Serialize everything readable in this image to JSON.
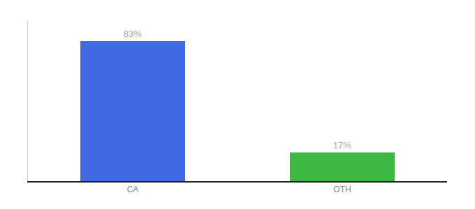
{
  "chart_data": {
    "type": "bar",
    "categories": [
      "CA",
      "OTH"
    ],
    "values": [
      83,
      17
    ],
    "value_labels": [
      "83%",
      "17%"
    ],
    "colors": [
      "#4169e1",
      "#3cb843"
    ],
    "ylim": [
      0,
      95
    ],
    "yticks": [],
    "tick_labels": "x",
    "data_labels": true,
    "grid": false
  }
}
